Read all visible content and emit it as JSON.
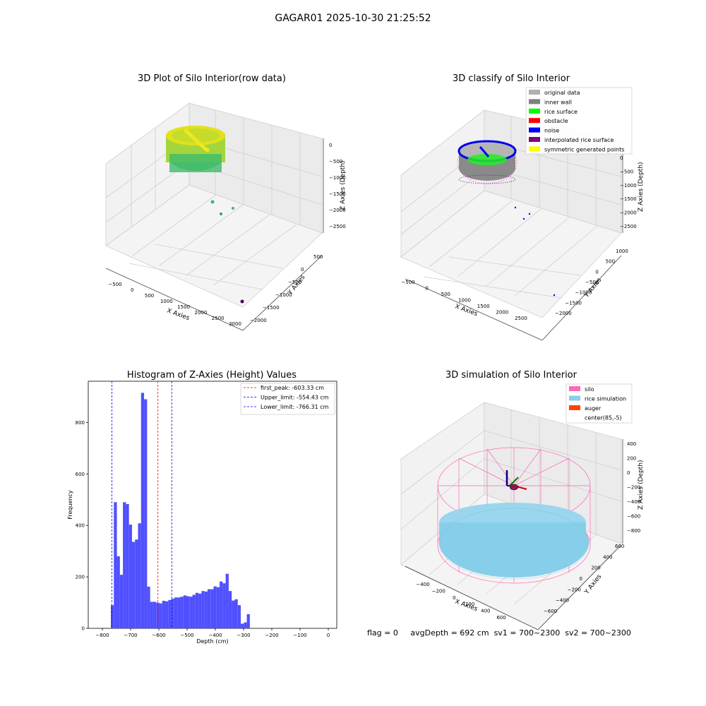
{
  "suptitle": "GAGAR01 2025-10-30 21:25:52",
  "status_line": {
    "flag": "flag = 0",
    "avg_depth": "avgDepth = 692 cm",
    "sv1": "sv1 = 700~2300",
    "sv2": "sv2 = 700~2300"
  },
  "colors": {
    "hist_bar": "#5050ff",
    "first_peak_line": "#ff0000",
    "limit_line": "#0000ff",
    "silo": "#ff69b4",
    "rice_sim": "#87ceeb",
    "auger": "#ff4500",
    "orig": "#b0b0b0",
    "inner_wall": "#808080",
    "rice_surface": "#00ff00",
    "obstacle": "#ff0000",
    "noise": "#0000ff",
    "interp": "#800080",
    "sym": "#ffff00"
  },
  "chart_data": [
    {
      "type": "scatter",
      "title": "3D Plot of Silo Interior(row data)",
      "xlabel": "X Axies",
      "ylabel": "Y Axies",
      "zlabel": "Z Axies (Depth)",
      "x_ticks": [
        "−500",
        "0",
        "500",
        "1000",
        "1500",
        "2000",
        "2500",
        "3000"
      ],
      "y_ticks": [
        "−2000",
        "−1500",
        "−1000",
        "−500",
        "0",
        "500"
      ],
      "z_ticks": [
        "0",
        "−500",
        "−1000",
        "−1500",
        "−2000",
        "−2500"
      ]
    },
    {
      "type": "scatter",
      "title": "3D classify of Silo Interior",
      "xlabel": "X Axies",
      "ylabel": "Y Axies",
      "zlabel": "Z Axies (Depth)",
      "x_ticks": [
        "−500",
        "0",
        "500",
        "1000",
        "1500",
        "2000",
        "2500"
      ],
      "y_ticks": [
        "−2000",
        "−1500",
        "−1000",
        "−500",
        "0",
        "500",
        "1000"
      ],
      "z_ticks": [
        "0",
        "−500",
        "−1000",
        "−1500",
        "−2000",
        "−2500"
      ],
      "legend": [
        {
          "label": "original data",
          "color": "#b0b0b0"
        },
        {
          "label": "inner wall",
          "color": "#808080"
        },
        {
          "label": "rice surface",
          "color": "#00ff00"
        },
        {
          "label": "obstacle",
          "color": "#ff0000"
        },
        {
          "label": "noise",
          "color": "#0000ff"
        },
        {
          "label": "interpolated rice surface",
          "color": "#800080"
        },
        {
          "label": "symmetric generated points",
          "color": "#ffff00"
        }
      ],
      "legend_loc": "top-right"
    },
    {
      "type": "bar",
      "title": "Histogram of Z-Axies (Height) Values",
      "xlabel": "Depth (cm)",
      "ylabel": "Frequency",
      "xlim": [
        -850,
        30
      ],
      "ylim": [
        0,
        960
      ],
      "x_ticks": [
        -800,
        -700,
        -600,
        -500,
        -400,
        -300,
        -200,
        -100,
        0
      ],
      "y_ticks": [
        0,
        200,
        400,
        600,
        800
      ],
      "bin_start": -770,
      "bin_width": 10.7,
      "values": [
        90,
        490,
        280,
        208,
        490,
        483,
        403,
        336,
        345,
        408,
        915,
        890,
        162,
        103,
        103,
        100,
        97,
        107,
        105,
        110,
        115,
        120,
        120,
        123,
        128,
        125,
        123,
        130,
        138,
        135,
        145,
        143,
        152,
        152,
        163,
        160,
        182,
        175,
        212,
        145,
        108,
        113,
        90,
        18,
        23,
        55
      ],
      "lines": [
        {
          "label": "first_peak: -603.33 cm",
          "x": -603.33,
          "color": "#ff0000"
        },
        {
          "label": "Upper_limit: -554.43 cm",
          "x": -554.43,
          "color": "#0000ff"
        },
        {
          "label": "Lower_limit: -766.31 cm",
          "x": -766.31,
          "color": "#0000ff"
        }
      ],
      "legend_loc": "top-right"
    },
    {
      "type": "scatter",
      "title": "3D simulation of Silo Interior",
      "xlabel": "X Axies",
      "ylabel": "Y Axies",
      "zlabel": "Z Axies (Depth)",
      "x_ticks": [
        "−400",
        "−200",
        "0",
        "200",
        "400",
        "600"
      ],
      "y_ticks": [
        "−600",
        "−400",
        "−200",
        "0",
        "200",
        "400",
        "600"
      ],
      "z_ticks": [
        "400",
        "200",
        "0",
        "−200",
        "−400",
        "−600",
        "−800"
      ],
      "legend": [
        {
          "label": "silo",
          "color": "#ff69b4"
        },
        {
          "label": "rice simulation",
          "color": "#87ceeb"
        },
        {
          "label": "auger",
          "color": "#ff4500"
        },
        {
          "label": "center(85,-5)",
          "color": ""
        }
      ],
      "legend_loc": "top-right"
    }
  ]
}
